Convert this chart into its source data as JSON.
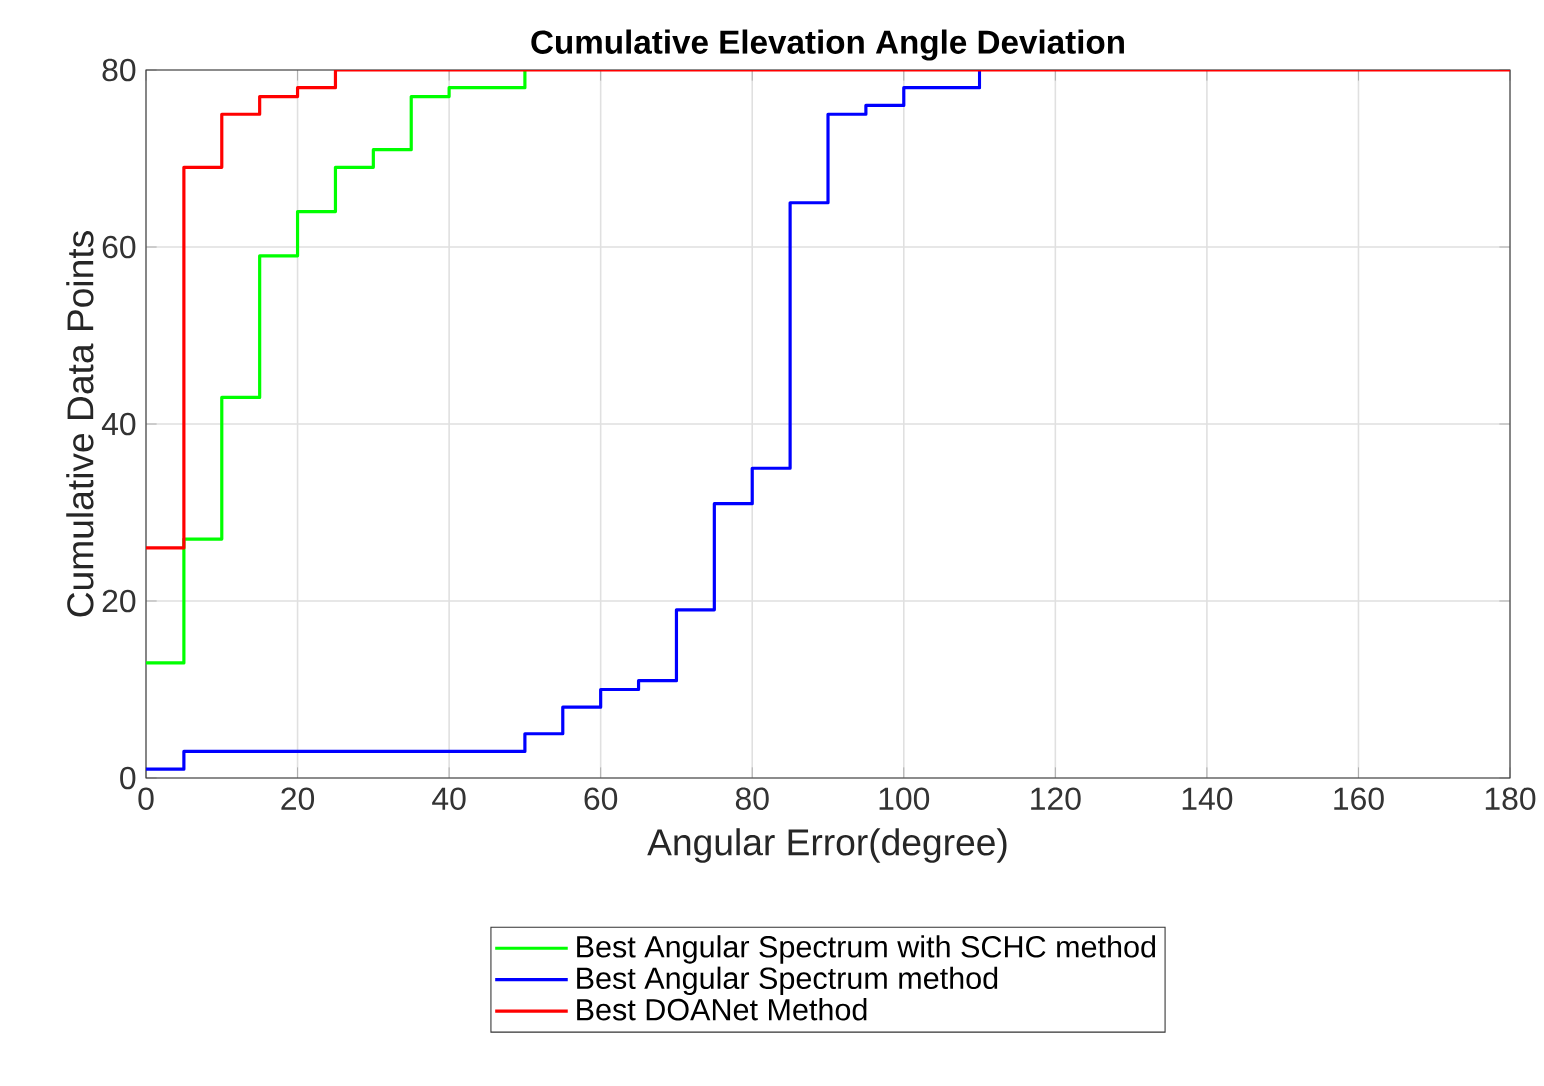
{
  "chart_data": {
    "type": "step",
    "title": "Cumulative Elevation Angle Deviation",
    "xlabel": "Angular Error(degree)",
    "ylabel": "Cumulative Data Points",
    "x": [
      0,
      5,
      10,
      15,
      20,
      25,
      30,
      35,
      40,
      45,
      50,
      55,
      60,
      65,
      70,
      75,
      80,
      85,
      90,
      95,
      100,
      105,
      110,
      115,
      120,
      125,
      130,
      135,
      140,
      145,
      150,
      155,
      160,
      165,
      170,
      175,
      180
    ],
    "series": [
      {
        "name": "Best Angular Spectrum with SCHC method",
        "color": "#00ff00",
        "values": [
          13,
          27,
          43,
          59,
          64,
          69,
          71,
          77,
          78,
          78,
          80,
          null,
          null,
          null,
          null,
          null,
          null,
          null,
          null,
          null,
          null,
          null,
          null,
          null,
          null,
          null,
          null,
          null,
          null,
          null,
          null,
          null,
          null,
          null,
          null,
          null,
          null
        ]
      },
      {
        "name": "Best Angular Spectrum method",
        "color": "#0000ff",
        "values": [
          1,
          3,
          3,
          3,
          3,
          3,
          3,
          3,
          3,
          3,
          5,
          8,
          10,
          11,
          19,
          31,
          35,
          65,
          75,
          76,
          78,
          78,
          80,
          null,
          null,
          null,
          null,
          null,
          null,
          null,
          null,
          null,
          null,
          null,
          null,
          null,
          null
        ]
      },
      {
        "name": "Best DOANet Method",
        "color": "#ff0000",
        "values": [
          26,
          69,
          75,
          77,
          78,
          80,
          80,
          80,
          80,
          80,
          80,
          80,
          80,
          80,
          80,
          80,
          80,
          80,
          80,
          80,
          80,
          80,
          80,
          80,
          80,
          80,
          80,
          80,
          80,
          80,
          80,
          80,
          80,
          80,
          80,
          80,
          80
        ]
      }
    ],
    "xlim": [
      0,
      180
    ],
    "ylim": [
      0,
      80
    ],
    "xticks": [
      0,
      20,
      40,
      60,
      80,
      100,
      120,
      140,
      160,
      180
    ],
    "yticks": [
      0,
      20,
      40,
      60,
      80
    ],
    "grid": true,
    "legend": "bottom"
  }
}
